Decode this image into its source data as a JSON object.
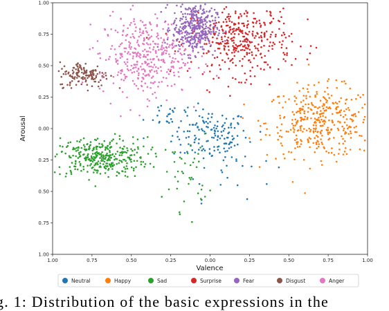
{
  "chart_data": {
    "type": "scatter",
    "xlabel": "Valence",
    "ylabel": "Arousal",
    "xlim": [
      -1.0,
      1.0
    ],
    "ylim": [
      -1.0,
      1.0
    ],
    "x_ticks": [
      "1.00",
      "0.75",
      "0.50",
      "0.25",
      "0.00",
      "0.25",
      "0.50",
      "0.75",
      "1.00"
    ],
    "y_ticks": [
      "1.00",
      "0.75",
      "0.50",
      "0.25",
      "0.00",
      "0.25",
      "0.50",
      "0.75",
      "1.00"
    ],
    "grid": false,
    "legend_position": "bottom",
    "series": [
      {
        "name": "Neutral",
        "color": "#1f77b4",
        "clusters": [
          {
            "cx": 0.0,
            "cy": -0.05,
            "sx": 0.12,
            "sy": 0.1,
            "n": 140
          },
          {
            "cx": -0.25,
            "cy": 0.12,
            "sx": 0.08,
            "sy": 0.06,
            "n": 20
          },
          {
            "cx": 0.1,
            "cy": -0.25,
            "sx": 0.15,
            "sy": 0.15,
            "n": 30
          }
        ]
      },
      {
        "name": "Happy",
        "color": "#ff7f0e",
        "clusters": [
          {
            "cx": 0.7,
            "cy": 0.05,
            "sx": 0.17,
            "sy": 0.14,
            "n": 380
          }
        ]
      },
      {
        "name": "Sad",
        "color": "#2ca02c",
        "clusters": [
          {
            "cx": -0.7,
            "cy": -0.23,
            "sx": 0.15,
            "sy": 0.08,
            "n": 340
          },
          {
            "cx": -0.15,
            "cy": -0.35,
            "sx": 0.07,
            "sy": 0.15,
            "n": 40
          }
        ]
      },
      {
        "name": "Surprise",
        "color": "#d62728",
        "clusters": [
          {
            "cx": 0.2,
            "cy": 0.7,
            "sx": 0.16,
            "sy": 0.14,
            "n": 380
          }
        ]
      },
      {
        "name": "Fear",
        "color": "#9467bd",
        "clusters": [
          {
            "cx": -0.1,
            "cy": 0.8,
            "sx": 0.07,
            "sy": 0.1,
            "n": 380
          }
        ]
      },
      {
        "name": "Disgust",
        "color": "#8c564b",
        "clusters": [
          {
            "cx": -0.8,
            "cy": 0.43,
            "sx": 0.08,
            "sy": 0.05,
            "n": 140
          }
        ]
      },
      {
        "name": "Anger",
        "color": "#e377c2",
        "clusters": [
          {
            "cx": -0.42,
            "cy": 0.58,
            "sx": 0.14,
            "sy": 0.16,
            "n": 380
          }
        ]
      }
    ]
  },
  "caption": "g. 1: Distribution of the basic expressions in the"
}
